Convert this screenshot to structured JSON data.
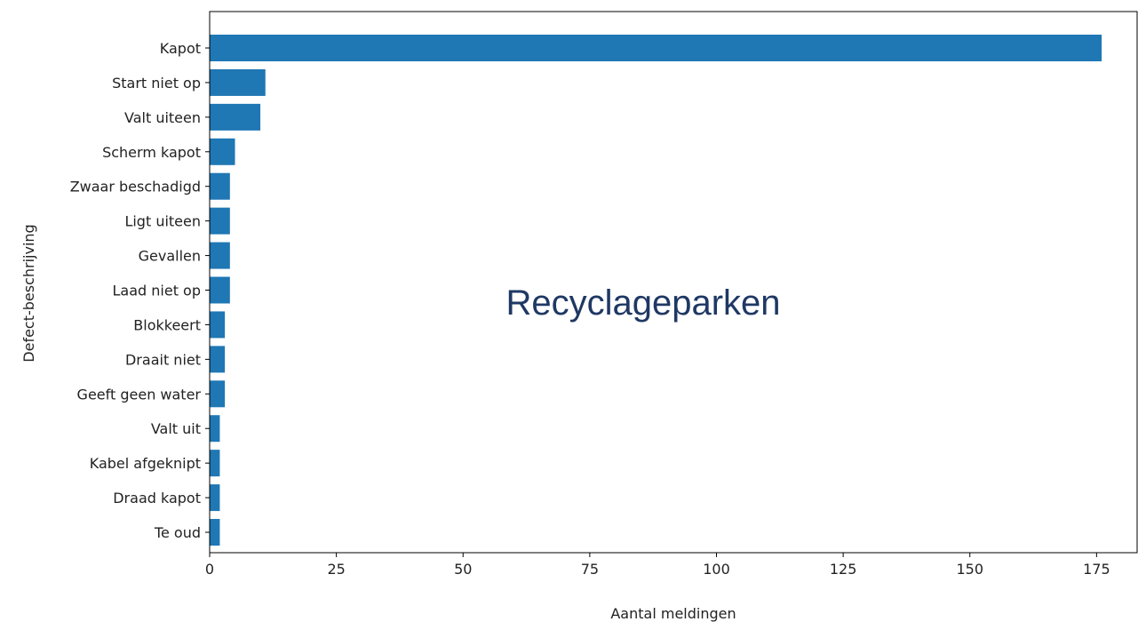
{
  "chart_data": {
    "type": "bar",
    "orientation": "horizontal",
    "categories": [
      "Kapot",
      "Start niet op",
      "Valt uiteen",
      "Scherm kapot",
      "Zwaar beschadigd",
      "Ligt uiteen",
      "Gevallen",
      "Laad niet op",
      "Blokkeert",
      "Draait niet",
      "Geeft geen water",
      "Valt uit",
      "Kabel afgeknipt",
      "Draad kapot",
      "Te oud"
    ],
    "values": [
      176,
      11,
      10,
      5,
      4,
      4,
      4,
      4,
      3,
      3,
      3,
      2,
      2,
      2,
      2
    ],
    "xlabel": "Aantal meldingen",
    "ylabel": "Defect-beschrijving",
    "xlim": [
      0,
      183
    ],
    "xticks": [
      0,
      25,
      50,
      75,
      100,
      125,
      150,
      175
    ],
    "bar_color": "#1f77b4",
    "grid": false
  },
  "overlay": {
    "text": "Recyclageparken",
    "color": "#1f3864"
  }
}
